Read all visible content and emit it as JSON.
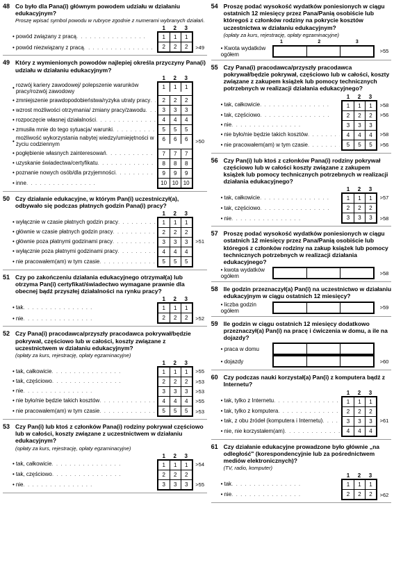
{
  "columns_3": [
    "1",
    "2",
    "3"
  ],
  "questions": {
    "48": {
      "num": "48",
      "text": "Co było dla Pana(i) głównym powodem udziału w działaniu edukacyjnym?",
      "note": "Proszę wpisać symbol powodu w rubryce zgodnie z numerami wybranych działań.",
      "rows": [
        {
          "label": "powód związany z pracą",
          "cells": [
            "1",
            "1",
            "1"
          ]
        },
        {
          "label": "powód niezwiązany z pracą",
          "cells": [
            "2",
            "2",
            "2"
          ]
        }
      ],
      "side": ">49"
    },
    "49": {
      "num": "49",
      "text": "Który z wymienionych powodów najlepiej określa przyczyny Pana(i) udziału w działaniu edukacyjnym?",
      "rows": [
        {
          "label": "rozwój kariery zawodowej/ polepszenie warunków pracy/rozwój zawodowy",
          "cells": [
            "1",
            "1",
            "1"
          ]
        },
        {
          "label": "zmniejszenie prawdopodobieństwa/ryzyka utraty pracy",
          "cells": [
            "2",
            "2",
            "2"
          ]
        },
        {
          "label": "wzrost możliwości otrzymania/ zmiany pracy/zawodu",
          "cells": [
            "3",
            "3",
            "3"
          ]
        },
        {
          "label": "rozpoczęcie własnej działalności",
          "cells": [
            "4",
            "4",
            "4"
          ]
        },
        {
          "label": "zmusiła mnie do tego sytuacja/ warunki",
          "cells": [
            "5",
            "5",
            "5"
          ]
        },
        {
          "label": "możliwość wykorzystania nabytej wiedzy/umiejętności w życiu codziennym",
          "cells": [
            "6",
            "6",
            "6"
          ]
        },
        {
          "label": "pogłębienie własnych zainteresowań",
          "cells": [
            "7",
            "7",
            "7"
          ]
        },
        {
          "label": "uzyskanie świadectwa/certyfikatu",
          "cells": [
            "8",
            "8",
            "8"
          ]
        },
        {
          "label": "poznanie nowych osób/dla przyjemności",
          "cells": [
            "9",
            "9",
            "9"
          ]
        },
        {
          "label": "inne",
          "cells": [
            "10",
            "10",
            "10"
          ]
        }
      ],
      "side": ">50"
    },
    "50": {
      "num": "50",
      "text": "Czy działanie edukacyjne, w którym Pan(i) uczestniczył(a), odbywało się podczas płatnych godzin Pana(i) pracy?",
      "rows": [
        {
          "label": "wyłącznie w czasie płatnych godzin pracy",
          "cells": [
            "1",
            "1",
            "1"
          ]
        },
        {
          "label": "głównie w czasie płatnych godzin pracy",
          "cells": [
            "2",
            "2",
            "2"
          ]
        },
        {
          "label": "głównie poza płatnymi godzinami pracy",
          "cells": [
            "3",
            "3",
            "3"
          ]
        },
        {
          "label": "wyłącznie poza płatnymi godzinami pracy",
          "cells": [
            "4",
            "4",
            "4"
          ]
        },
        {
          "label": "nie pracowałem(am) w tym czasie",
          "cells": [
            "5",
            "5",
            "5"
          ]
        }
      ],
      "side": ">51"
    },
    "51": {
      "num": "51",
      "text": "Czy po zakończeniu działania edukacyjnego otrzymał(a) lub otrzyma Pan(i) certyfikat/świadectwo wymagane prawnie dla obecnej bądź przyszłej działalności na rynku pracy?",
      "rows": [
        {
          "label": "tak",
          "cells": [
            "1",
            "1",
            "1"
          ]
        },
        {
          "label": "nie",
          "cells": [
            "2",
            "2",
            "2"
          ]
        }
      ],
      "side": ">52"
    },
    "52": {
      "num": "52",
      "text": "Czy Pana(i) pracodawca/przyszły pracodawca pokrywał/będzie pokrywał, częściowo lub w całości, koszty związane z uczestnictwem w działaniu edukacyjnym?",
      "note": "(opłaty za kurs, rejestrację, opłaty egzaminacyjne)",
      "rows": [
        {
          "label": "tak, całkowicie",
          "cells": [
            "1",
            "1",
            "1"
          ],
          "side": ">55"
        },
        {
          "label": "tak, częściowo",
          "cells": [
            "2",
            "2",
            "2"
          ],
          "side": ">53"
        },
        {
          "label": "nie",
          "cells": [
            "3",
            "3",
            "3"
          ],
          "side": ">53"
        },
        {
          "label": "nie było/nie będzie takich kosztów",
          "cells": [
            "4",
            "4",
            "4"
          ],
          "side": ">55"
        },
        {
          "label": "nie pracowałem(am) w tym czasie",
          "cells": [
            "5",
            "5",
            "5"
          ],
          "side": ">53"
        }
      ]
    },
    "53": {
      "num": "53",
      "text": "Czy Pan(i) lub ktoś z członków Pana(i) rodziny pokrywał częściowo lub w całości, koszty związane z uczestnictwem w działaniu edukacyjnym?",
      "note": "(opłaty za kurs, rejestrację, opłaty egzaminacyjne)",
      "rows": [
        {
          "label": "tak, całkowicie",
          "cells": [
            "1",
            "1",
            "1"
          ],
          "side": ">54"
        },
        {
          "label": "tak, częściowo",
          "cells": [
            "2",
            "2",
            "2"
          ],
          "side": ""
        },
        {
          "label": "nie",
          "cells": [
            "3",
            "3",
            "3"
          ],
          "side": ">55"
        }
      ]
    },
    "54": {
      "num": "54",
      "text": "Proszę podać wysokość wydatków poniesionych w ciągu ostatnich 12 miesięcy przez Pana/Panią osobiście lub któregoś z członków rodziny na pokrycie kosztów uczestnictwa w działaniu edukacyjnym?",
      "note": "(opłaty za kurs, rejestrację, opłaty egzaminacyjne)",
      "input_label": "Kwota wydatków ogółem",
      "input_header": [
        "1",
        "2",
        "3"
      ],
      "side": ">55"
    },
    "55": {
      "num": "55",
      "text": "Czy Pana(i) pracodawca/przyszły pracodawca pokrywał/będzie pokrywał, częściowo lub w całości, koszty związane z zakupem książek lub pomocy technicznych potrzebnych w realizacji działania edukacyjnego?",
      "rows": [
        {
          "label": "tak, całkowicie",
          "cells": [
            "1",
            "1",
            "1"
          ],
          "side": ">58"
        },
        {
          "label": "tak, częściowo",
          "cells": [
            "2",
            "2",
            "2"
          ],
          "side": ">56"
        },
        {
          "label": "nie",
          "cells": [
            "3",
            "3",
            "3"
          ],
          "side": ""
        },
        {
          "label": "nie było/nie będzie takich kosztów",
          "cells": [
            "4",
            "4",
            "4"
          ],
          "side": ">58"
        },
        {
          "label": "nie pracowałem(am) w tym czasie",
          "cells": [
            "5",
            "5",
            "5"
          ],
          "side": ">56"
        }
      ]
    },
    "56": {
      "num": "56",
      "text": "Czy Pan(i) lub ktoś z członków Pana(i) rodziny pokrywał częściowo lub w całości koszty związane z zakupem książek lub pomocy technicznych potrzebnych w realizacji działania edukacyjnego?",
      "rows": [
        {
          "label": "tak, całkowicie",
          "cells": [
            "1",
            "1",
            "1"
          ],
          "side": ">57"
        },
        {
          "label": "tak, częściowo",
          "cells": [
            "2",
            "2",
            "2"
          ],
          "side": ""
        },
        {
          "label": "nie",
          "cells": [
            "3",
            "3",
            "3"
          ],
          "side": ">58"
        }
      ]
    },
    "57": {
      "num": "57",
      "text": "Proszę podać wysokość wydatków poniesionych w ciągu ostatnich 12 miesięcy przez Pana/Panią osobiście lub któregoś z członków rodziny na zakup książek lub pomocy technicznych potrzebnych w realizacji działania edukacyjnego?",
      "input_label": "kwota wydatków ogółem",
      "side": ">58"
    },
    "58": {
      "num": "58",
      "text": "Ile godzin przeznaczył(a) Pan(i) na uczestnictwo w działaniu edukacyjnym w ciągu ostatnich 12 miesięcy?",
      "input_label": "liczba godzin ogółem",
      "side": ">59"
    },
    "59": {
      "num": "59",
      "text": "Ile godzin w ciągu ostatnich 12 miesięcy dodatkowo przeznaczył(a) Pan(i) na pracę i ćwiczenia w domu, a ile na dojazdy?",
      "inputs": [
        {
          "label": "praca w domu"
        },
        {
          "label": "dojazdy"
        }
      ],
      "side": ">60"
    },
    "60": {
      "num": "60",
      "text": "Czy podczas nauki korzystał(a) Pan(i) z komputera bądź z Internetu?",
      "rows": [
        {
          "label": "tak, tylko z Internetu",
          "cells": [
            "1",
            "1",
            "1"
          ]
        },
        {
          "label": "tak, tylko z komputera",
          "cells": [
            "2",
            "2",
            "2"
          ]
        },
        {
          "label": "tak, z obu źródeł (komputera i Internetu)",
          "cells": [
            "3",
            "3",
            "3"
          ]
        },
        {
          "label": "nie, nie korzystałem(am)",
          "cells": [
            "4",
            "4",
            "4"
          ]
        }
      ],
      "side": ">61"
    },
    "61": {
      "num": "61",
      "text": "Czy działanie edukacyjne prowadzone było głównie „na odległość\" (korespondencyjnie lub za pośrednictwem mediów elektronicznych)?",
      "note": "(TV, radio, komputer)",
      "rows": [
        {
          "label": "tak",
          "cells": [
            "1",
            "1",
            "1"
          ]
        },
        {
          "label": "nie",
          "cells": [
            "2",
            "2",
            "2"
          ]
        }
      ],
      "side": ">62"
    }
  },
  "left_order": [
    "48",
    "49",
    "50",
    "51",
    "52",
    "53"
  ],
  "right_order": [
    "54",
    "55",
    "56",
    "57",
    "58",
    "59",
    "60",
    "61"
  ]
}
